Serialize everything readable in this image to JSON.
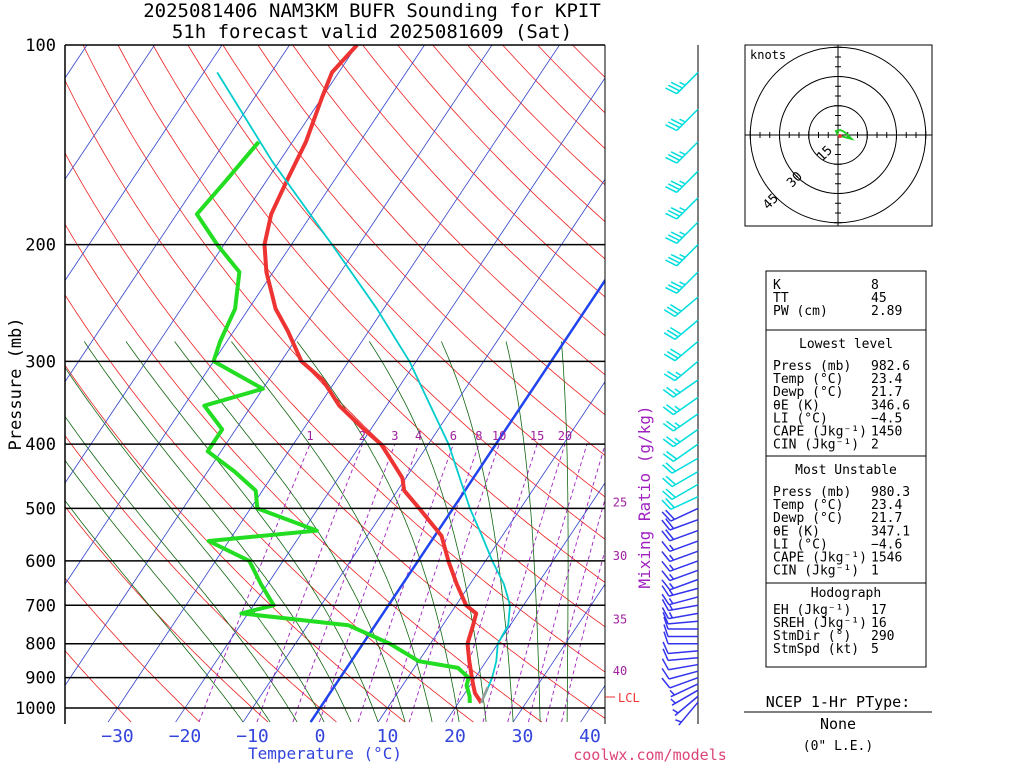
{
  "title": {
    "line1": "2025081406 NAM3KM BUFR Sounding for KPIT",
    "line2": "51h forecast valid 2025081609 (Sat)"
  },
  "credit": "coolwx.com/models",
  "axes": {
    "ylabel": "Pressure (mb)",
    "xlabel": "Temperature (°C)",
    "mixing_label": "Mixing Ratio (g/kg)",
    "pressure_ticks": [
      "100",
      "200",
      "300",
      "400",
      "500",
      "600",
      "700",
      "800",
      "900",
      "1000"
    ],
    "temp_ticks": [
      "−30",
      "−20",
      "−10",
      "0",
      "10",
      "20",
      "30",
      "40"
    ],
    "mixing_top": [
      "1",
      "2",
      "3",
      "4",
      "6",
      "8",
      "10",
      "15",
      "20"
    ],
    "mixing_right": [
      "25",
      "30",
      "35",
      "40"
    ],
    "lcl": "LCL"
  },
  "hodograph": {
    "units": "knots",
    "rings": [
      "15",
      "30",
      "45"
    ]
  },
  "indices": {
    "top": [
      {
        "label": "K",
        "value": "8"
      },
      {
        "label": "TT",
        "value": "45"
      },
      {
        "label": "PW (cm)",
        "value": "2.89"
      }
    ],
    "lowest_title": "Lowest level",
    "lowest": [
      {
        "label": "Press (mb)",
        "value": "982.6"
      },
      {
        "label": "Temp (°C)",
        "value": "23.4"
      },
      {
        "label": "Dewp (°C)",
        "value": "21.7"
      },
      {
        "label": "θE (K)",
        "value": "346.6"
      },
      {
        "label": "LI (°C)",
        "value": "−4.5"
      },
      {
        "label": "CAPE (Jkg⁻¹)",
        "value": "1450"
      },
      {
        "label": "CIN (Jkg⁻¹)",
        "value": "2"
      }
    ],
    "mu_title": "Most Unstable",
    "mu": [
      {
        "label": "Press (mb)",
        "value": "980.3"
      },
      {
        "label": "Temp (°C)",
        "value": "23.4"
      },
      {
        "label": "Dewp (°C)",
        "value": "21.7"
      },
      {
        "label": "θE (K)",
        "value": "347.1"
      },
      {
        "label": "LI (°C)",
        "value": "−4.6"
      },
      {
        "label": "CAPE (Jkg⁻¹)",
        "value": "1546"
      },
      {
        "label": "CIN (Jkg⁻¹)",
        "value": "1"
      }
    ],
    "hodo_title": "Hodograph",
    "hodo": [
      {
        "label": "EH (Jkg⁻¹)",
        "value": "17"
      },
      {
        "label": "SREH (Jkg⁻¹)",
        "value": "16"
      },
      {
        "label": "StmDir (°)",
        "value": "290"
      },
      {
        "label": "StmSpd (kt)",
        "value": "5"
      }
    ]
  },
  "ptype": {
    "title": "NCEP 1-Hr PType:",
    "value": "None",
    "amount": "(0\" L.E.)"
  },
  "chart_data": {
    "type": "line",
    "title": "2025081406 NAM3KM BUFR Sounding for KPIT",
    "subtitle": "51h forecast valid 2025081609 (Sat)",
    "xlabel": "Temperature (°C)",
    "ylabel": "Pressure (mb)",
    "xlim": [
      -38,
      42
    ],
    "ylim": [
      1025,
      100
    ],
    "pressure_scale": "log",
    "series": [
      {
        "color": "#ee3333",
        "points": [
          [
            982.6,
            23.4
          ],
          [
            950,
            21.5
          ],
          [
            925,
            20.5
          ],
          [
            900,
            19.5
          ],
          [
            850,
            17.5
          ],
          [
            800,
            15.5
          ],
          [
            750,
            14.5
          ],
          [
            720,
            13.8
          ],
          [
            700,
            11.5
          ],
          [
            650,
            8
          ],
          [
            600,
            4.5
          ],
          [
            550,
            1
          ],
          [
            500,
            -5
          ],
          [
            470,
            -9
          ],
          [
            450,
            -10.5
          ],
          [
            430,
            -13
          ],
          [
            400,
            -17
          ],
          [
            380,
            -21
          ],
          [
            350,
            -27
          ],
          [
            320,
            -32
          ],
          [
            300,
            -37
          ],
          [
            270,
            -42
          ],
          [
            250,
            -46
          ],
          [
            220,
            -51
          ],
          [
            200,
            -54
          ],
          [
            180,
            -56
          ],
          [
            160,
            -57
          ],
          [
            140,
            -58
          ],
          [
            120,
            -60
          ],
          [
            110,
            -61
          ],
          [
            100,
            -60
          ]
        ]
      },
      {
        "color": "#22dd22",
        "points": [
          [
            982.6,
            21.7
          ],
          [
            960,
            21
          ],
          [
            925,
            19.5
          ],
          [
            900,
            19
          ],
          [
            870,
            16.5
          ],
          [
            850,
            10
          ],
          [
            800,
            4
          ],
          [
            750,
            -4
          ],
          [
            720,
            -21
          ],
          [
            700,
            -17
          ],
          [
            650,
            -21
          ],
          [
            600,
            -25
          ],
          [
            560,
            -33
          ],
          [
            540,
            -18
          ],
          [
            500,
            -29
          ],
          [
            470,
            -31
          ],
          [
            440,
            -36
          ],
          [
            410,
            -42
          ],
          [
            380,
            -42
          ],
          [
            350,
            -47
          ],
          [
            330,
            -40
          ],
          [
            300,
            -50
          ],
          [
            280,
            -51
          ],
          [
            250,
            -52
          ],
          [
            220,
            -55
          ],
          [
            200,
            -61
          ],
          [
            180,
            -67
          ],
          [
            160,
            -66
          ],
          [
            140,
            -65
          ]
        ]
      },
      {
        "color": "#00cccc",
        "points": [
          [
            982.6,
            23.4
          ],
          [
            940,
            23
          ],
          [
            900,
            22.5
          ],
          [
            850,
            21.5
          ],
          [
            800,
            20
          ],
          [
            750,
            19.7
          ],
          [
            700,
            18
          ],
          [
            650,
            15
          ],
          [
            600,
            11
          ],
          [
            550,
            7
          ],
          [
            500,
            2.5
          ],
          [
            450,
            -2
          ],
          [
            400,
            -7
          ],
          [
            350,
            -13.5
          ],
          [
            300,
            -21
          ],
          [
            250,
            -31
          ],
          [
            200,
            -44
          ],
          [
            150,
            -61
          ],
          [
            110,
            -78
          ]
        ]
      },
      {
        "color": "#999999",
        "points": [
          [
            982.6,
            23.4
          ],
          [
            960,
            23.1
          ],
          [
            930,
            22.8
          ]
        ]
      }
    ],
    "winds": {
      "pressures": [
        980,
        960,
        940,
        920,
        900,
        880,
        860,
        840,
        820,
        800,
        780,
        760,
        740,
        720,
        700,
        680,
        660,
        640,
        620,
        600,
        580,
        560,
        540,
        520,
        500,
        480,
        460,
        440,
        420,
        400,
        380,
        360,
        340,
        320,
        300,
        280,
        260,
        240,
        220,
        200,
        185,
        170,
        155,
        140,
        125,
        110
      ],
      "directions": [
        220,
        230,
        240,
        245,
        250,
        255,
        260,
        265,
        265,
        270,
        270,
        270,
        265,
        260,
        260,
        255,
        255,
        250,
        250,
        250,
        250,
        250,
        250,
        250,
        245,
        245,
        240,
        240,
        240,
        235,
        235,
        235,
        235,
        235,
        230,
        230,
        230,
        230,
        225,
        225,
        225,
        225,
        225,
        225,
        225,
        225
      ],
      "speeds_kt": [
        5,
        5,
        6,
        5,
        8,
        10,
        10,
        11,
        12,
        11,
        12,
        12,
        12,
        13,
        13,
        14,
        14,
        15,
        16,
        16,
        17,
        17,
        18,
        19,
        19,
        20,
        21,
        21,
        22,
        22,
        23,
        24,
        25,
        26,
        27,
        28,
        30,
        32,
        33,
        33,
        33,
        34,
        34,
        34,
        35,
        35
      ],
      "color_low": "#3333ee",
      "color_high": "#00dddd"
    },
    "hodograph_points": [
      [
        0,
        0
      ],
      [
        -2,
        4
      ],
      [
        2,
        5
      ],
      [
        5,
        4
      ],
      [
        8,
        2
      ],
      [
        10,
        0
      ],
      [
        12,
        -2
      ],
      [
        14,
        -4
      ],
      [
        10,
        -3
      ],
      [
        6,
        -2
      ],
      [
        3,
        -1
      ],
      [
        0,
        0
      ]
    ],
    "hodograph_rings_kt": [
      15,
      30,
      45
    ],
    "mixing_ratios": [
      1,
      2,
      3,
      4,
      6,
      8,
      10,
      15,
      20,
      25,
      30,
      35,
      40
    ],
    "lcl_pressure": 965
  }
}
